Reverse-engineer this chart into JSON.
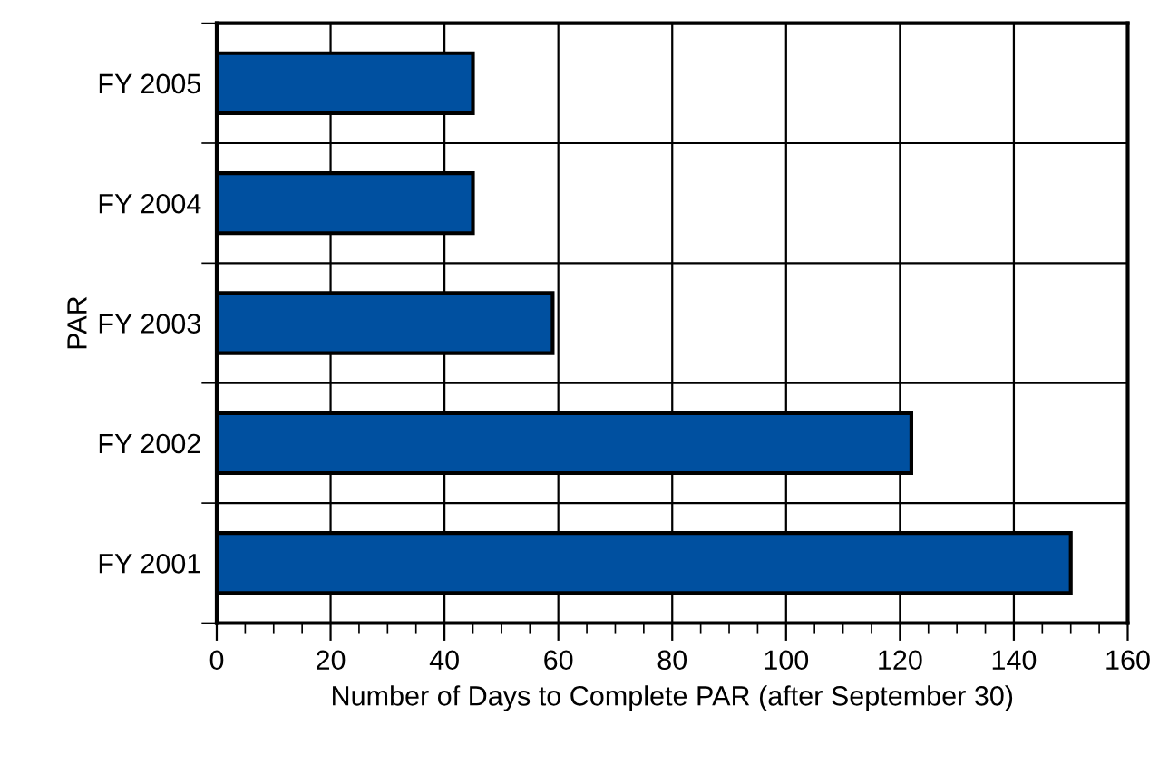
{
  "chart_data": {
    "type": "bar",
    "orientation": "horizontal",
    "categories": [
      "FY 2005",
      "FY 2004",
      "FY 2003",
      "FY 2002",
      "FY 2001"
    ],
    "values": [
      45,
      45,
      59,
      122,
      150
    ],
    "color": "#0050a0",
    "xlim": [
      0,
      160
    ],
    "xticks": [
      0,
      20,
      40,
      60,
      80,
      100,
      120,
      140,
      160
    ],
    "xlabel": "Number of Days to Complete PAR (after September 30)",
    "ylabel": "PAR",
    "grid": true
  }
}
